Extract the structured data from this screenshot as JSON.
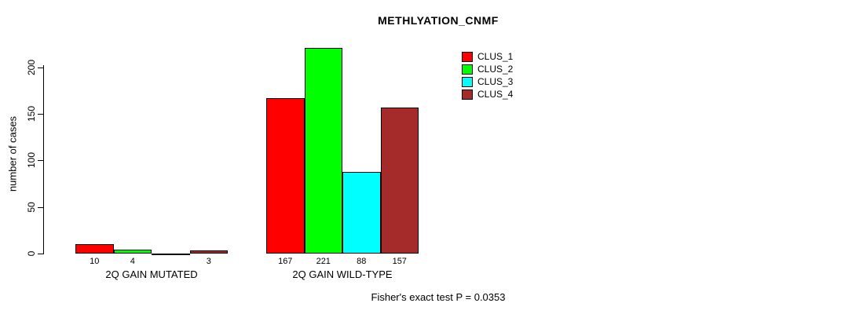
{
  "chart_data": {
    "type": "bar",
    "title": "METHLYATION_CNMF",
    "ylabel": "number of cases",
    "xlabel": "",
    "yticks": [
      0,
      50,
      100,
      150,
      200
    ],
    "ylim": [
      0,
      202
    ],
    "grid": false,
    "legend_position": "top-right",
    "categories": [
      "2Q GAIN MUTATED",
      "2Q GAIN WILD-TYPE"
    ],
    "series": [
      {
        "name": "CLUS_1",
        "color": "#FF0000",
        "values": [
          10,
          167
        ]
      },
      {
        "name": "CLUS_2",
        "color": "#00FF00",
        "values": [
          4,
          221
        ]
      },
      {
        "name": "CLUS_3",
        "color": "#00FFFF",
        "values": [
          0,
          88
        ]
      },
      {
        "name": "CLUS_4",
        "color": "#A52A2A",
        "values": [
          3,
          157
        ]
      }
    ],
    "groups": [
      {
        "label": "2Q GAIN MUTATED",
        "values": [
          10,
          4,
          0,
          3
        ],
        "bar_labels": [
          "10",
          "4",
          "",
          "3"
        ]
      },
      {
        "label": "2Q GAIN WILD-TYPE",
        "values": [
          167,
          221,
          88,
          157
        ],
        "bar_labels": [
          "167",
          "221",
          "88",
          "157"
        ]
      }
    ],
    "annotation": "Fisher's exact test P = 0.0353"
  },
  "colors": {
    "background": "#FFFFFF",
    "axis": "#000000",
    "text": "#000000"
  }
}
